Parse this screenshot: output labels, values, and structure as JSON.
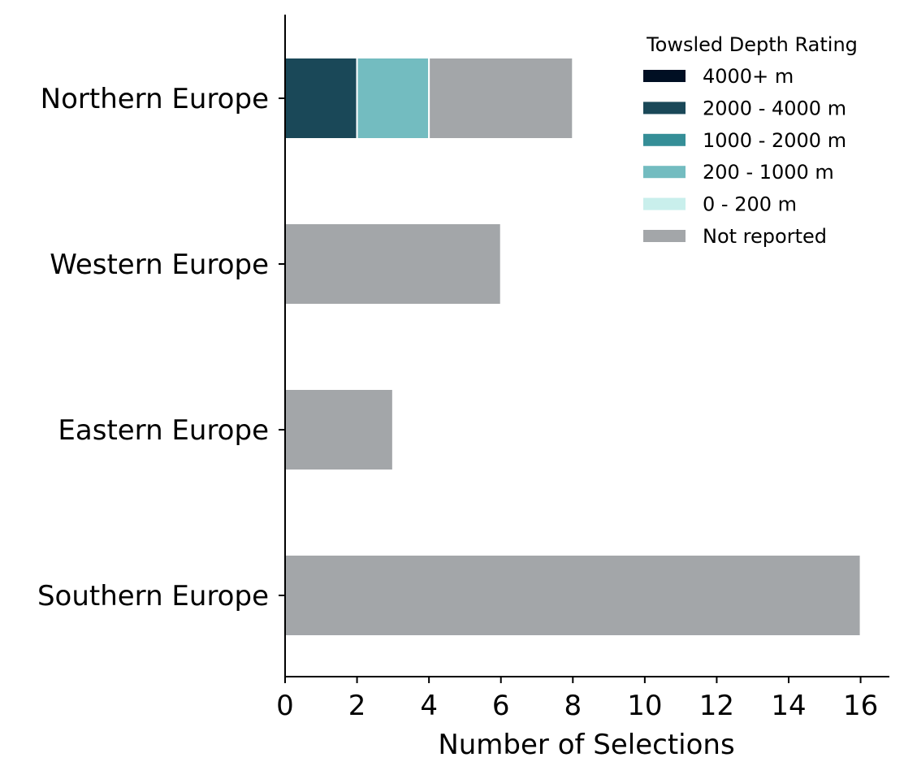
{
  "chart_data": {
    "type": "bar",
    "orientation": "horizontal",
    "stacked": true,
    "categories": [
      "Northern Europe",
      "Western Europe",
      "Eastern Europe",
      "Southern Europe"
    ],
    "series": [
      {
        "name": "4000+ m",
        "color": "#000f23",
        "values": [
          0,
          0,
          0,
          0
        ]
      },
      {
        "name": "2000 - 4000 m",
        "color": "#1a4858",
        "values": [
          2,
          0,
          0,
          0
        ]
      },
      {
        "name": "1000 - 2000 m",
        "color": "#358e97",
        "values": [
          0,
          0,
          0,
          0
        ]
      },
      {
        "name": "200 - 1000 m",
        "color": "#73bcc0",
        "values": [
          2,
          0,
          0,
          0
        ]
      },
      {
        "name": "0 - 200 m",
        "color": "#c9efec",
        "values": [
          0,
          0,
          0,
          0
        ]
      },
      {
        "name": "Not reported",
        "color": "#a3a6a9",
        "values": [
          4,
          6,
          3,
          16
        ]
      }
    ],
    "xlabel": "Number of Selections",
    "ylabel": "",
    "xlim": [
      0,
      16.8
    ],
    "xticks": [
      0,
      2,
      4,
      6,
      8,
      10,
      12,
      14,
      16
    ],
    "grid": false,
    "legend": {
      "title": "Towsled Depth Rating",
      "placement": "top-right"
    }
  }
}
